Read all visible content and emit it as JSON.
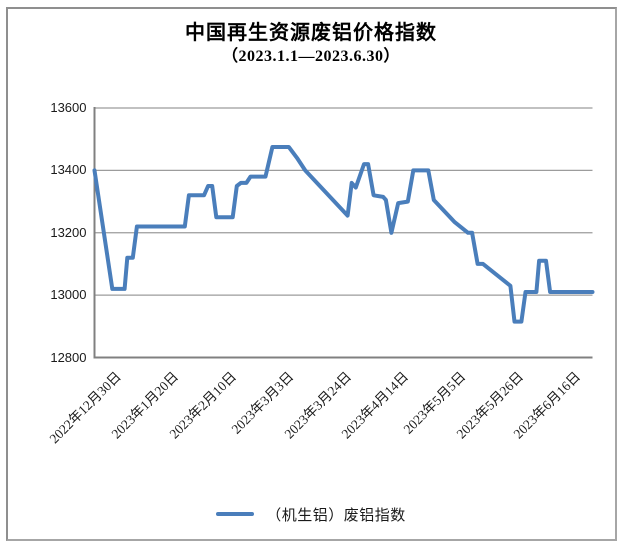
{
  "window": {
    "background": "#ffffff",
    "frame_color": "#a6a6a6"
  },
  "chart_data": {
    "type": "line",
    "title": "中国再生资源废铝价格指数",
    "subtitle": "（2023.1.1—2023.6.30）",
    "ylabel": "",
    "xlabel": "",
    "ylim": [
      12800,
      13600
    ],
    "yticks": [
      12800,
      13000,
      13200,
      13400,
      13600
    ],
    "x_range_days": [
      0,
      182
    ],
    "grid": true,
    "legend_position": "bottom",
    "colors": {
      "line": "#4a7ebb",
      "gridline": "#9c9c9c",
      "axis": "#808080"
    },
    "xticks": [
      {
        "day": 0,
        "label": "2022年12月30日"
      },
      {
        "day": 21,
        "label": "2023年1月20日"
      },
      {
        "day": 42,
        "label": "2023年2月10日"
      },
      {
        "day": 63,
        "label": "2023年3月3日"
      },
      {
        "day": 84,
        "label": "2023年3月24日"
      },
      {
        "day": 105,
        "label": "2023年4月14日"
      },
      {
        "day": 126,
        "label": "2023年5月5日"
      },
      {
        "day": 147,
        "label": "2023年5月26日"
      },
      {
        "day": 168,
        "label": "2023年6月16日"
      }
    ],
    "series": [
      {
        "name": "（机生铝）废铝指数",
        "color": "#4a7ebb",
        "points": [
          [
            0,
            13400
          ],
          [
            6.5,
            13020
          ],
          [
            11,
            13020
          ],
          [
            12,
            13120
          ],
          [
            14,
            13120
          ],
          [
            15.5,
            13220
          ],
          [
            33,
            13220
          ],
          [
            34.5,
            13320
          ],
          [
            40,
            13320
          ],
          [
            41.5,
            13350
          ],
          [
            43,
            13350
          ],
          [
            44.5,
            13250
          ],
          [
            50.5,
            13250
          ],
          [
            52,
            13350
          ],
          [
            53.5,
            13360
          ],
          [
            55.5,
            13360
          ],
          [
            57,
            13380
          ],
          [
            62.5,
            13380
          ],
          [
            65,
            13475
          ],
          [
            71,
            13475
          ],
          [
            74,
            13440
          ],
          [
            77,
            13400
          ],
          [
            92.5,
            13255
          ],
          [
            94,
            13360
          ],
          [
            95.5,
            13345
          ],
          [
            98.5,
            13420
          ],
          [
            100,
            13420
          ],
          [
            102,
            13320
          ],
          [
            105.5,
            13315
          ],
          [
            106.5,
            13305
          ],
          [
            108.5,
            13200
          ],
          [
            111,
            13295
          ],
          [
            114.5,
            13300
          ],
          [
            116.5,
            13400
          ],
          [
            122,
            13400
          ],
          [
            124,
            13305
          ],
          [
            131.5,
            13235
          ],
          [
            136.5,
            13200
          ],
          [
            138,
            13200
          ],
          [
            140,
            13100
          ],
          [
            142,
            13100
          ],
          [
            152,
            13030
          ],
          [
            153.5,
            12915
          ],
          [
            156,
            12915
          ],
          [
            157.5,
            13010
          ],
          [
            161.5,
            13010
          ],
          [
            162.5,
            13110
          ],
          [
            165,
            13110
          ],
          [
            166.5,
            13010
          ],
          [
            182,
            13010
          ]
        ]
      }
    ]
  }
}
